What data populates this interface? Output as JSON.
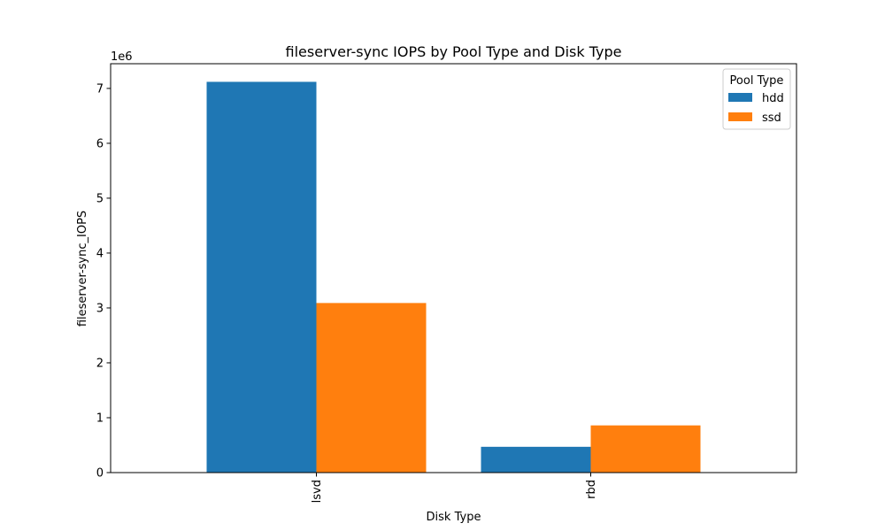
{
  "chart_data": {
    "type": "bar",
    "title": "fileserver-sync IOPS by Pool Type and Disk Type",
    "xlabel": "Disk Type",
    "ylabel": "fileserver-sync_IOPS",
    "y_offset_label": "1e6",
    "categories": [
      "lsvd",
      "rbd"
    ],
    "series": [
      {
        "name": "hdd",
        "values": [
          7120000,
          470000
        ],
        "color": "#1f77b4"
      },
      {
        "name": "ssd",
        "values": [
          3090000,
          860000
        ],
        "color": "#ff7f0e"
      }
    ],
    "ylim": [
      0,
      7450000
    ],
    "y_ticks": [
      0,
      1000000,
      2000000,
      3000000,
      4000000,
      5000000,
      6000000,
      7000000
    ],
    "y_tick_labels": [
      "0",
      "1",
      "2",
      "3",
      "4",
      "5",
      "6",
      "7"
    ],
    "legend": {
      "title": "Pool Type",
      "position": "top-right"
    },
    "grid": false
  }
}
